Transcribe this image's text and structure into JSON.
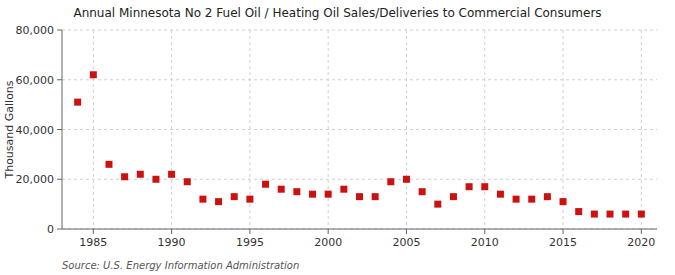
{
  "chart_data": {
    "type": "scatter",
    "title": "Annual Minnesota No 2 Fuel Oil / Heating Oil Sales/Deliveries to Commercial Consumers",
    "ylabel": "Thousand Gallons",
    "annotations": [
      "Source: U.S. Energy Information Administration"
    ],
    "color": "#cc1111",
    "marker": "square",
    "grid": true,
    "xlim": [
      1983,
      2021
    ],
    "ylim": [
      0,
      80000
    ],
    "xticks": [
      1985,
      1990,
      1995,
      2000,
      2005,
      2010,
      2015,
      2020
    ],
    "yticks": [
      0,
      {
        "value": 20000,
        "label": "20,000"
      },
      {
        "value": 40000,
        "label": "40,000"
      },
      {
        "value": 60000,
        "label": "60,000"
      },
      {
        "value": 80000,
        "label": "80,000"
      }
    ],
    "x": [
      1984,
      1985,
      1986,
      1987,
      1988,
      1989,
      1990,
      1991,
      1992,
      1993,
      1994,
      1995,
      1996,
      1997,
      1998,
      1999,
      2000,
      2001,
      2002,
      2003,
      2004,
      2005,
      2006,
      2007,
      2008,
      2009,
      2010,
      2011,
      2012,
      2013,
      2014,
      2015,
      2016,
      2017,
      2018,
      2019,
      2020
    ],
    "values": [
      51000,
      62000,
      26000,
      21000,
      22000,
      20000,
      22000,
      19000,
      12000,
      11000,
      13000,
      12000,
      18000,
      16000,
      15000,
      14000,
      14000,
      16000,
      13000,
      13000,
      19000,
      20000,
      15000,
      10000,
      13000,
      17000,
      17000,
      14000,
      12000,
      12000,
      13000,
      11000,
      7000,
      6000,
      6000,
      6000,
      6000
    ]
  }
}
